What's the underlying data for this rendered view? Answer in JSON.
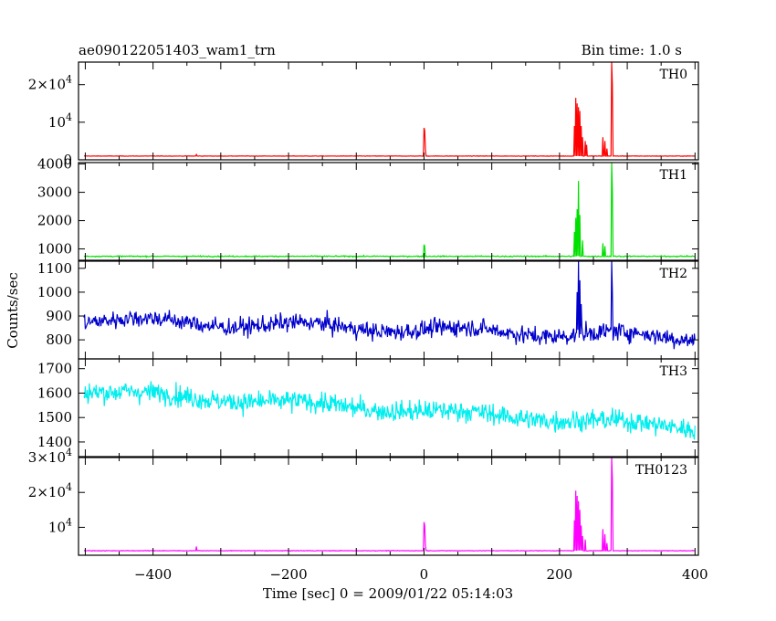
{
  "chart_data": {
    "type": "line",
    "title_left": "ae090122051403_wam1_trn",
    "title_right": "Bin time: 1.0 s",
    "xlabel": "Time [sec] 0 = 2009/01/22 05:14:03",
    "ylabel": "Counts/sec",
    "xlim": [
      -510,
      405
    ],
    "x_ticks": [
      {
        "value": -400,
        "label": "−400"
      },
      {
        "value": -200,
        "label": "−200"
      },
      {
        "value": 0,
        "label": "0"
      },
      {
        "value": 200,
        "label": "200"
      },
      {
        "value": 400,
        "label": "400"
      }
    ],
    "series": [
      {
        "name": "TH0",
        "color": "#ff0000",
        "ylim": [
          0,
          26000
        ],
        "y_ticks": [
          {
            "value": 0,
            "base": "0",
            "exp": ""
          },
          {
            "value": 10000,
            "base": "10",
            "exp": "4"
          },
          {
            "value": 20000,
            "base": "2×10",
            "exp": "4"
          }
        ],
        "baseline": 1000,
        "noise": 80,
        "trend": 0,
        "wave": 0,
        "spikes": [
          [
            -336,
            1400
          ],
          [
            0,
            8500
          ],
          [
            1,
            7800
          ],
          [
            2,
            3000
          ],
          [
            222,
            9000
          ],
          [
            224,
            16500
          ],
          [
            226,
            15000
          ],
          [
            228,
            14000
          ],
          [
            230,
            13000
          ],
          [
            232,
            9000
          ],
          [
            234,
            6000
          ],
          [
            238,
            5000
          ],
          [
            240,
            4000
          ],
          [
            264,
            6000
          ],
          [
            267,
            5000
          ],
          [
            270,
            3000
          ],
          [
            277,
            26000
          ],
          [
            278,
            20000
          ]
        ]
      },
      {
        "name": "TH1",
        "color": "#00e000",
        "ylim": [
          600,
          4050
        ],
        "y_ticks": [
          {
            "value": 1000,
            "base": "1000",
            "exp": ""
          },
          {
            "value": 2000,
            "base": "2000",
            "exp": ""
          },
          {
            "value": 3000,
            "base": "3000",
            "exp": ""
          },
          {
            "value": 4000,
            "base": "4000",
            "exp": ""
          }
        ],
        "baseline": 740,
        "noise": 25,
        "trend": 0,
        "wave": 0,
        "spikes": [
          [
            0,
            1150
          ],
          [
            1,
            1100
          ],
          [
            222,
            1600
          ],
          [
            224,
            2100
          ],
          [
            226,
            2400
          ],
          [
            228,
            3400
          ],
          [
            230,
            2200
          ],
          [
            234,
            1300
          ],
          [
            264,
            1200
          ],
          [
            267,
            1100
          ],
          [
            277,
            4050
          ],
          [
            278,
            3100
          ]
        ]
      },
      {
        "name": "TH2",
        "color": "#0000cc",
        "ylim": [
          720,
          1130
        ],
        "y_ticks": [
          {
            "value": 800,
            "base": "800",
            "exp": ""
          },
          {
            "value": 900,
            "base": "900",
            "exp": ""
          },
          {
            "value": 1000,
            "base": "1000",
            "exp": ""
          },
          {
            "value": 1100,
            "base": "1100",
            "exp": ""
          }
        ],
        "baseline": 885,
        "noise": 48,
        "trend": -75,
        "wave": 15,
        "spikes": [
          [
            226,
            1000
          ],
          [
            228,
            1130
          ],
          [
            230,
            1050
          ],
          [
            232,
            950
          ],
          [
            277,
            1130
          ],
          [
            278,
            1000
          ]
        ]
      },
      {
        "name": "TH3",
        "color": "#00eeee",
        "ylim": [
          1340,
          1740
        ],
        "y_ticks": [
          {
            "value": 1400,
            "base": "1400",
            "exp": ""
          },
          {
            "value": 1500,
            "base": "1500",
            "exp": ""
          },
          {
            "value": 1600,
            "base": "1600",
            "exp": ""
          },
          {
            "value": 1700,
            "base": "1700",
            "exp": ""
          }
        ],
        "baseline": 1610,
        "noise": 55,
        "trend": -150,
        "wave": 10,
        "spikes": []
      },
      {
        "name": "TH0123",
        "color": "#ff00ff",
        "ylim": [
          2000,
          30000
        ],
        "y_ticks": [
          {
            "value": 10000,
            "base": "10",
            "exp": "4"
          },
          {
            "value": 20000,
            "base": "2×10",
            "exp": "4"
          },
          {
            "value": 30000,
            "base": "3×10",
            "exp": "4"
          }
        ],
        "baseline": 3300,
        "noise": 100,
        "trend": 0,
        "wave": 0,
        "spikes": [
          [
            -336,
            4500
          ],
          [
            0,
            11500
          ],
          [
            1,
            10500
          ],
          [
            2,
            5000
          ],
          [
            222,
            12000
          ],
          [
            224,
            20500
          ],
          [
            226,
            19000
          ],
          [
            228,
            17500
          ],
          [
            230,
            15000
          ],
          [
            232,
            10500
          ],
          [
            234,
            7500
          ],
          [
            238,
            6500
          ],
          [
            264,
            9500
          ],
          [
            267,
            8000
          ],
          [
            270,
            5500
          ],
          [
            277,
            30000
          ],
          [
            278,
            24000
          ]
        ]
      }
    ]
  }
}
